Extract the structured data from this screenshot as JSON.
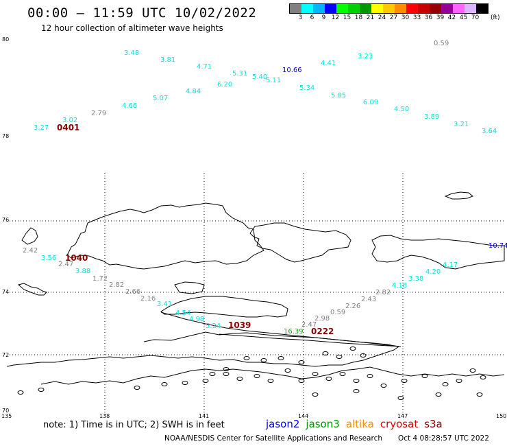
{
  "header": {
    "title": "00:00 – 11:59 UTC 10/02/2022",
    "subtitle": "12 hour collection of altimeter wave heights"
  },
  "color_scale": {
    "swatches": [
      "#808080",
      "#00ffff",
      "#00b4ff",
      "#0000ff",
      "#00ff00",
      "#00d000",
      "#009600",
      "#ffff00",
      "#ffc800",
      "#ff8c00",
      "#ff0000",
      "#c80000",
      "#960000",
      "#960096",
      "#ff64ff",
      "#dcb4ff",
      "#000000"
    ],
    "labels": [
      "3",
      "6",
      "9",
      "12",
      "15",
      "18",
      "21",
      "24",
      "27",
      "30",
      "33",
      "36",
      "39",
      "42",
      "45",
      "70"
    ],
    "unit": "(ft)"
  },
  "axes": {
    "lat_labels": [
      "80",
      "78",
      "76",
      "74",
      "72",
      "70"
    ],
    "lon_labels": [
      "135",
      "138",
      "141",
      "144",
      "147",
      "150"
    ]
  },
  "wave_labels": [
    {
      "t": "3.48",
      "c": "#00e5e5"
    },
    {
      "t": "3.81",
      "c": "#00e5e5"
    },
    {
      "t": "4.71",
      "c": "#00e5e5"
    },
    {
      "t": "5.31",
      "c": "#00e5e5"
    },
    {
      "t": "5.40",
      "c": "#00e5e5"
    },
    {
      "t": "5.11",
      "c": "#00e5e5"
    },
    {
      "t": "10.66",
      "c": "#0000cc"
    },
    {
      "t": "4.41",
      "c": "#00e5e5"
    },
    {
      "t": "3.23",
      "c": "#00e5e5"
    },
    {
      "t": "0.59",
      "c": "#808080"
    },
    {
      "t": "6.20",
      "c": "#00e5e5"
    },
    {
      "t": "4.84",
      "c": "#00e5e5"
    },
    {
      "t": "5.34",
      "c": "#00e5e5"
    },
    {
      "t": "5.85",
      "c": "#00e5e5"
    },
    {
      "t": "5.07",
      "c": "#00e5e5"
    },
    {
      "t": "6.09",
      "c": "#00e5e5"
    },
    {
      "t": "4.66",
      "c": "#00e5e5"
    },
    {
      "t": "4.50",
      "c": "#00e5e5"
    },
    {
      "t": "2.79",
      "c": "#808080"
    },
    {
      "t": "3.89",
      "c": "#00e5e5"
    },
    {
      "t": "3.02",
      "c": "#00e5e5"
    },
    {
      "t": "3.27",
      "c": "#00e5e5"
    },
    {
      "t": "3.21",
      "c": "#00e5e5"
    },
    {
      "t": "3.64",
      "c": "#00e5e5"
    },
    {
      "t": "2.42",
      "c": "#808080"
    },
    {
      "t": "3.56",
      "c": "#00e5e5"
    },
    {
      "t": "2.47",
      "c": "#808080"
    },
    {
      "t": "3.88",
      "c": "#00e5e5"
    },
    {
      "t": "1.72",
      "c": "#808080"
    },
    {
      "t": "2.82",
      "c": "#808080"
    },
    {
      "t": "2.66",
      "c": "#808080"
    },
    {
      "t": "2.16",
      "c": "#808080"
    },
    {
      "t": "3.41",
      "c": "#00e5e5"
    },
    {
      "t": "4.54",
      "c": "#00e5e5"
    },
    {
      "t": "4.98",
      "c": "#00e5e5"
    },
    {
      "t": "5.24",
      "c": "#00e5e5"
    },
    {
      "t": "10.74",
      "c": "#0000cc"
    },
    {
      "t": "4.17",
      "c": "#00e5e5"
    },
    {
      "t": "4.20",
      "c": "#00e5e5"
    },
    {
      "t": "3.38",
      "c": "#00e5e5"
    },
    {
      "t": "4.18",
      "c": "#00e5e5"
    },
    {
      "t": "2.82",
      "c": "#808080"
    },
    {
      "t": "2.43",
      "c": "#808080"
    },
    {
      "t": "2.26",
      "c": "#808080"
    },
    {
      "t": "0.59",
      "c": "#808080"
    },
    {
      "t": "2.98",
      "c": "#808080"
    },
    {
      "t": "2.47",
      "c": "#808080"
    },
    {
      "t": "16.39",
      "c": "#00b000"
    }
  ],
  "pass_times": [
    {
      "t": "0401",
      "c": "#8b0000"
    },
    {
      "t": "1040",
      "c": "#8b0000"
    },
    {
      "t": "1039",
      "c": "#8b0000"
    },
    {
      "t": "0222",
      "c": "#8b0000"
    }
  ],
  "footer": {
    "note": "note:  1) Time is in UTC; 2) SWH is in feet",
    "missions": [
      {
        "name": "jason2",
        "color": "#0000ff"
      },
      {
        "name": "jason3",
        "color": "#009600"
      },
      {
        "name": "altika",
        "color": "#ff8c00"
      },
      {
        "name": "cryosat",
        "color": "#e00000"
      },
      {
        "name": "s3a",
        "color": "#8b0000"
      }
    ],
    "credit": "NOAA/NESDIS Center for Satellite Applications and Research",
    "timestamp": "Oct  4 08:28:57 UTC 2022"
  }
}
